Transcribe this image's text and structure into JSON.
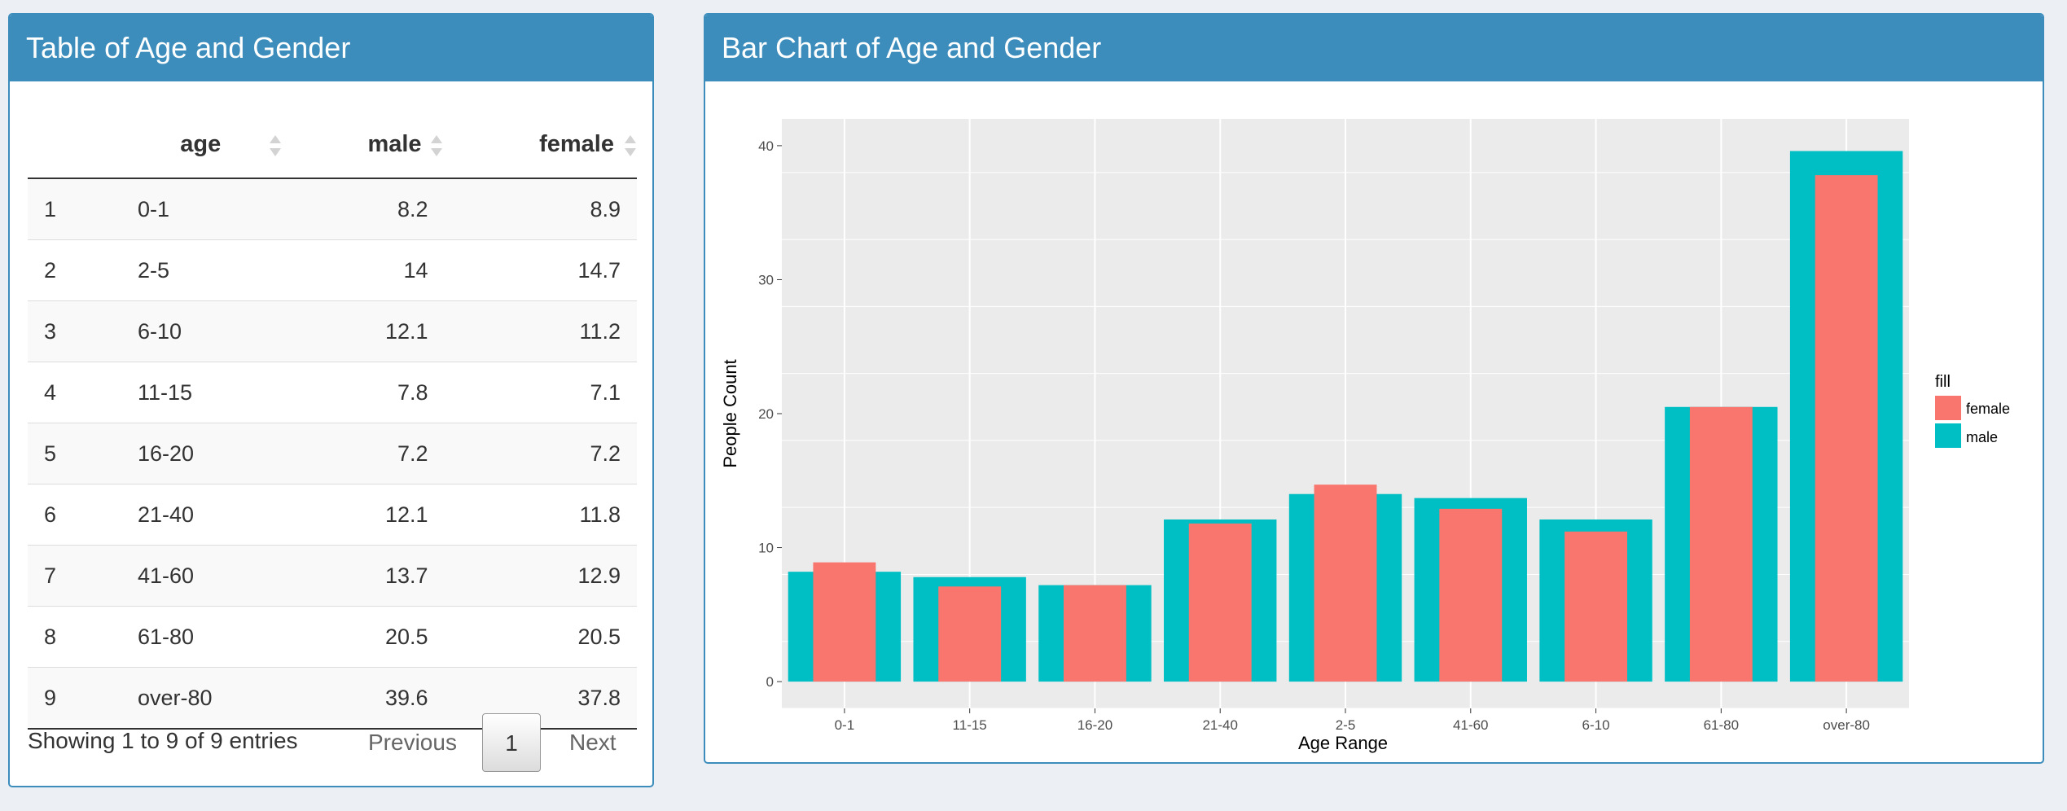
{
  "table_box": {
    "title": "Table of Age and Gender",
    "columns": [
      "",
      "age",
      "male",
      "female"
    ],
    "rows": [
      {
        "idx": "1",
        "age": "0-1",
        "male": "8.2",
        "female": "8.9"
      },
      {
        "idx": "2",
        "age": "2-5",
        "male": "14",
        "female": "14.7"
      },
      {
        "idx": "3",
        "age": "6-10",
        "male": "12.1",
        "female": "11.2"
      },
      {
        "idx": "4",
        "age": "11-15",
        "male": "7.8",
        "female": "7.1"
      },
      {
        "idx": "5",
        "age": "16-20",
        "male": "7.2",
        "female": "7.2"
      },
      {
        "idx": "6",
        "age": "21-40",
        "male": "12.1",
        "female": "11.8"
      },
      {
        "idx": "7",
        "age": "41-60",
        "male": "13.7",
        "female": "12.9"
      },
      {
        "idx": "8",
        "age": "61-80",
        "male": "20.5",
        "female": "20.5"
      },
      {
        "idx": "9",
        "age": "over-80",
        "male": "39.6",
        "female": "37.8"
      }
    ],
    "info": "Showing 1 to 9 of 9 entries",
    "pagination": {
      "previous": "Previous",
      "current": "1",
      "next": "Next"
    }
  },
  "chart_box": {
    "title": "Bar Chart of Age and Gender"
  },
  "colors": {
    "header": "#3c8dbc",
    "female": "#f8766d",
    "male": "#00bfc4",
    "panel_bg": "#ebebeb"
  },
  "chart_data": {
    "type": "bar",
    "categories": [
      "0-1",
      "11-15",
      "16-20",
      "21-40",
      "2-5",
      "41-60",
      "6-10",
      "61-80",
      "over-80"
    ],
    "series": [
      {
        "name": "male",
        "values": [
          8.2,
          7.8,
          7.2,
          12.1,
          14,
          13.7,
          12.1,
          20.5,
          39.6
        ]
      },
      {
        "name": "female",
        "values": [
          8.9,
          7.1,
          7.2,
          11.8,
          14.7,
          12.9,
          11.2,
          20.5,
          37.8
        ]
      }
    ],
    "xlabel": "Age Range",
    "ylabel": "People Count",
    "ylim": [
      -2,
      42
    ],
    "yticks": [
      "0",
      "10",
      "20",
      "30",
      "40"
    ],
    "legend": {
      "title": "fill",
      "entries": [
        "female",
        "male"
      ],
      "position": "right"
    },
    "grid": true
  }
}
